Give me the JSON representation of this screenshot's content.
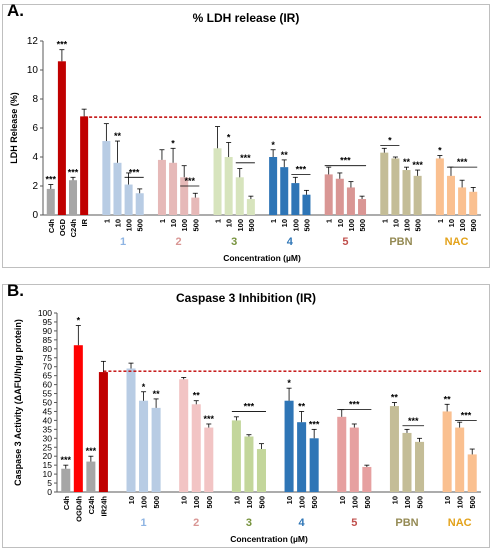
{
  "chart_data": [
    {
      "panel_label": "A.",
      "type": "bar",
      "title": "% LDH release (IR)",
      "ylabel": "LDH Release (%)",
      "xlabel": "Concentration (µM)",
      "ylim": [
        0,
        12
      ],
      "yticks": [
        "0",
        "2",
        "4",
        "6",
        "8",
        "10",
        "12"
      ],
      "reference_line": 6.75,
      "bars": [
        {
          "label": "C4h",
          "value": 1.8,
          "err": 0.3,
          "sig": "***",
          "color": "#a6a6a6",
          "group": 0
        },
        {
          "label": "OGD",
          "value": 10.6,
          "err": 0.8,
          "sig": "***",
          "color": "#c00000",
          "group": 0
        },
        {
          "label": "C24h",
          "value": 2.4,
          "err": 0.2,
          "sig": "***",
          "color": "#a6a6a6",
          "group": 0
        },
        {
          "label": "IR",
          "value": 6.8,
          "err": 0.5,
          "sig": "",
          "color": "#c00000",
          "group": 0
        },
        {
          "label": "1",
          "value": 5.1,
          "err": 1.2,
          "sig": "",
          "color": "#b8cce4",
          "group": 1
        },
        {
          "label": "10",
          "value": 3.6,
          "err": 1.5,
          "sig": "**",
          "color": "#b8cce4",
          "group": 1
        },
        {
          "label": "100",
          "value": 2.1,
          "err": 0.8,
          "sig": "",
          "color": "#b8cce4",
          "group": 1
        },
        {
          "label": "500",
          "value": 1.5,
          "err": 0.3,
          "sig": "",
          "color": "#b8cce4",
          "group": 1
        },
        {
          "label": "1",
          "value": 3.8,
          "err": 0.7,
          "sig": "",
          "color": "#e6b9b8",
          "group": 2
        },
        {
          "label": "10",
          "value": 3.6,
          "err": 1.0,
          "sig": "*",
          "color": "#e6b9b8",
          "group": 2
        },
        {
          "label": "100",
          "value": 2.6,
          "err": 0.8,
          "sig": "",
          "color": "#e6b9b8",
          "group": 2
        },
        {
          "label": "500",
          "value": 1.2,
          "err": 0.3,
          "sig": "",
          "color": "#e6b9b8",
          "group": 2
        },
        {
          "label": "1",
          "value": 4.6,
          "err": 1.5,
          "sig": "",
          "color": "#d7e4bd",
          "group": 3
        },
        {
          "label": "10",
          "value": 4.0,
          "err": 1.0,
          "sig": "*",
          "color": "#d7e4bd",
          "group": 3
        },
        {
          "label": "100",
          "value": 2.6,
          "err": 0.6,
          "sig": "",
          "color": "#d7e4bd",
          "group": 3
        },
        {
          "label": "500",
          "value": 1.1,
          "err": 0.2,
          "sig": "",
          "color": "#d7e4bd",
          "group": 3
        },
        {
          "label": "1",
          "value": 4.0,
          "err": 0.5,
          "sig": "*",
          "color": "#2e75b6",
          "group": 4
        },
        {
          "label": "10",
          "value": 3.3,
          "err": 0.5,
          "sig": "**",
          "color": "#2e75b6",
          "group": 4
        },
        {
          "label": "100",
          "value": 2.2,
          "err": 0.4,
          "sig": "",
          "color": "#2e75b6",
          "group": 4
        },
        {
          "label": "500",
          "value": 1.4,
          "err": 0.3,
          "sig": "",
          "color": "#2e75b6",
          "group": 4
        },
        {
          "label": "1",
          "value": 2.8,
          "err": 0.5,
          "sig": "",
          "color": "#d99694",
          "group": 5
        },
        {
          "label": "10",
          "value": 2.5,
          "err": 0.4,
          "sig": "",
          "color": "#d99694",
          "group": 5
        },
        {
          "label": "100",
          "value": 1.9,
          "err": 0.4,
          "sig": "",
          "color": "#d99694",
          "group": 5
        },
        {
          "label": "500",
          "value": 1.1,
          "err": 0.2,
          "sig": "",
          "color": "#d99694",
          "group": 5
        },
        {
          "label": "1",
          "value": 4.3,
          "err": 0.3,
          "sig": "",
          "color": "#c4bd97",
          "group": 6
        },
        {
          "label": "10",
          "value": 3.9,
          "err": 0.1,
          "sig": "",
          "color": "#c4bd97",
          "group": 6
        },
        {
          "label": "100",
          "value": 3.1,
          "err": 0.2,
          "sig": "**",
          "color": "#c4bd97",
          "group": 6
        },
        {
          "label": "500",
          "value": 2.7,
          "err": 0.4,
          "sig": "***",
          "color": "#c4bd97",
          "group": 6
        },
        {
          "label": "1",
          "value": 3.9,
          "err": 0.2,
          "sig": "*",
          "color": "#fac090",
          "group": 7
        },
        {
          "label": "10",
          "value": 2.7,
          "err": 0.6,
          "sig": "",
          "color": "#fac090",
          "group": 7
        },
        {
          "label": "100",
          "value": 1.9,
          "err": 0.5,
          "sig": "",
          "color": "#fac090",
          "group": 7
        },
        {
          "label": "500",
          "value": 1.6,
          "err": 0.3,
          "sig": "",
          "color": "#fac090",
          "group": 7
        }
      ],
      "brackets": [
        {
          "from": 6,
          "to": 7,
          "value": 2.6,
          "text": "***"
        },
        {
          "from": 10,
          "to": 11,
          "value": 2.0,
          "text": "***"
        },
        {
          "from": 14,
          "to": 15,
          "value": 3.6,
          "text": "***"
        },
        {
          "from": 18,
          "to": 19,
          "value": 2.8,
          "text": "***"
        },
        {
          "from": 20,
          "to": 23,
          "value": 3.4,
          "text": "***"
        },
        {
          "from": 24,
          "to": 25,
          "value": 4.8,
          "text": "*"
        },
        {
          "from": 29,
          "to": 31,
          "value": 3.3,
          "text": "***"
        }
      ],
      "group_labels": [
        {
          "text": "1",
          "group": 1,
          "color": "#8eb4e3"
        },
        {
          "text": "2",
          "group": 2,
          "color": "#d99694"
        },
        {
          "text": "3",
          "group": 3,
          "color": "#76923c"
        },
        {
          "text": "4",
          "group": 4,
          "color": "#2e75b6"
        },
        {
          "text": "5",
          "group": 5,
          "color": "#c0504d"
        },
        {
          "text": "PBN",
          "group": 6,
          "color": "#948a54"
        },
        {
          "text": "NAC",
          "group": 7,
          "color": "#e3a21a"
        }
      ]
    },
    {
      "panel_label": "B.",
      "type": "bar",
      "title": "Caspase 3 Inhibition (IR)",
      "ylabel": "Caspase 3 Activity (ΔAFU/h/µg protein)",
      "xlabel": "Concentration (µM)",
      "ylim": [
        0,
        100
      ],
      "yticks": [
        "0",
        "5",
        "10",
        "15",
        "20",
        "25",
        "30",
        "35",
        "40",
        "45",
        "50",
        "55",
        "60",
        "65",
        "70",
        "75",
        "80",
        "85",
        "90",
        "95",
        "100"
      ],
      "reference_line": 67.5,
      "bars": [
        {
          "label": "C4h",
          "value": 13,
          "err": 2,
          "sig": "***",
          "color": "#a6a6a6",
          "group": 0
        },
        {
          "label": "OGD4h",
          "value": 82,
          "err": 11,
          "sig": "*",
          "color": "#ff0000",
          "group": 0
        },
        {
          "label": "C24h",
          "value": 17,
          "err": 3,
          "sig": "***",
          "color": "#a6a6a6",
          "group": 0
        },
        {
          "label": "IR24h",
          "value": 67,
          "err": 6,
          "sig": "",
          "color": "#c00000",
          "group": 0
        },
        {
          "label": "10",
          "value": 69,
          "err": 3,
          "sig": "",
          "color": "#b8cce4",
          "group": 1
        },
        {
          "label": "100",
          "value": 51,
          "err": 5,
          "sig": "*",
          "color": "#b8cce4",
          "group": 1
        },
        {
          "label": "500",
          "value": 47,
          "err": 5,
          "sig": "**",
          "color": "#b8cce4",
          "group": 1
        },
        {
          "label": "10",
          "value": 63,
          "err": 1,
          "sig": "",
          "color": "#f2c4c4",
          "group": 2
        },
        {
          "label": "100",
          "value": 49,
          "err": 2,
          "sig": "**",
          "color": "#f2c4c4",
          "group": 2
        },
        {
          "label": "500",
          "value": 36,
          "err": 2,
          "sig": "***",
          "color": "#f2c4c4",
          "group": 2
        },
        {
          "label": "10",
          "value": 40,
          "err": 2,
          "sig": "",
          "color": "#c3d69b",
          "group": 3
        },
        {
          "label": "100",
          "value": 31,
          "err": 1,
          "sig": "",
          "color": "#c3d69b",
          "group": 3
        },
        {
          "label": "500",
          "value": 24,
          "err": 3,
          "sig": "",
          "color": "#c3d69b",
          "group": 3
        },
        {
          "label": "10",
          "value": 51,
          "err": 7,
          "sig": "*",
          "color": "#2e75b6",
          "group": 4
        },
        {
          "label": "100",
          "value": 39,
          "err": 6,
          "sig": "**",
          "color": "#2e75b6",
          "group": 4
        },
        {
          "label": "500",
          "value": 30,
          "err": 5,
          "sig": "***",
          "color": "#2e75b6",
          "group": 4
        },
        {
          "label": "10",
          "value": 42,
          "err": 4,
          "sig": "",
          "color": "#e6a0a0",
          "group": 5
        },
        {
          "label": "100",
          "value": 36,
          "err": 2,
          "sig": "",
          "color": "#e6a0a0",
          "group": 5
        },
        {
          "label": "500",
          "value": 14,
          "err": 1,
          "sig": "",
          "color": "#e6a0a0",
          "group": 5
        },
        {
          "label": "10",
          "value": 48,
          "err": 2,
          "sig": "**",
          "color": "#c4bd97",
          "group": 6
        },
        {
          "label": "100",
          "value": 33,
          "err": 2,
          "sig": "",
          "color": "#c4bd97",
          "group": 6
        },
        {
          "label": "500",
          "value": 28,
          "err": 2,
          "sig": "",
          "color": "#c4bd97",
          "group": 6
        },
        {
          "label": "10",
          "value": 45,
          "err": 4,
          "sig": "**",
          "color": "#fac090",
          "group": 7
        },
        {
          "label": "100",
          "value": 36,
          "err": 3,
          "sig": "",
          "color": "#fac090",
          "group": 7
        },
        {
          "label": "500",
          "value": 21,
          "err": 3,
          "sig": "",
          "color": "#fac090",
          "group": 7
        }
      ],
      "brackets": [
        {
          "from": 10,
          "to": 12,
          "value": 45,
          "text": "***"
        },
        {
          "from": 16,
          "to": 18,
          "value": 46,
          "text": "***"
        },
        {
          "from": 20,
          "to": 21,
          "value": 37,
          "text": "***"
        },
        {
          "from": 23,
          "to": 24,
          "value": 40,
          "text": "***"
        }
      ],
      "group_labels": [
        {
          "text": "1",
          "group": 1,
          "color": "#8eb4e3"
        },
        {
          "text": "2",
          "group": 2,
          "color": "#d99694"
        },
        {
          "text": "3",
          "group": 3,
          "color": "#76923c"
        },
        {
          "text": "4",
          "group": 4,
          "color": "#2e75b6"
        },
        {
          "text": "5",
          "group": 5,
          "color": "#c0504d"
        },
        {
          "text": "PBN",
          "group": 6,
          "color": "#948a54"
        },
        {
          "text": "NAC",
          "group": 7,
          "color": "#e3a21a"
        }
      ]
    }
  ]
}
